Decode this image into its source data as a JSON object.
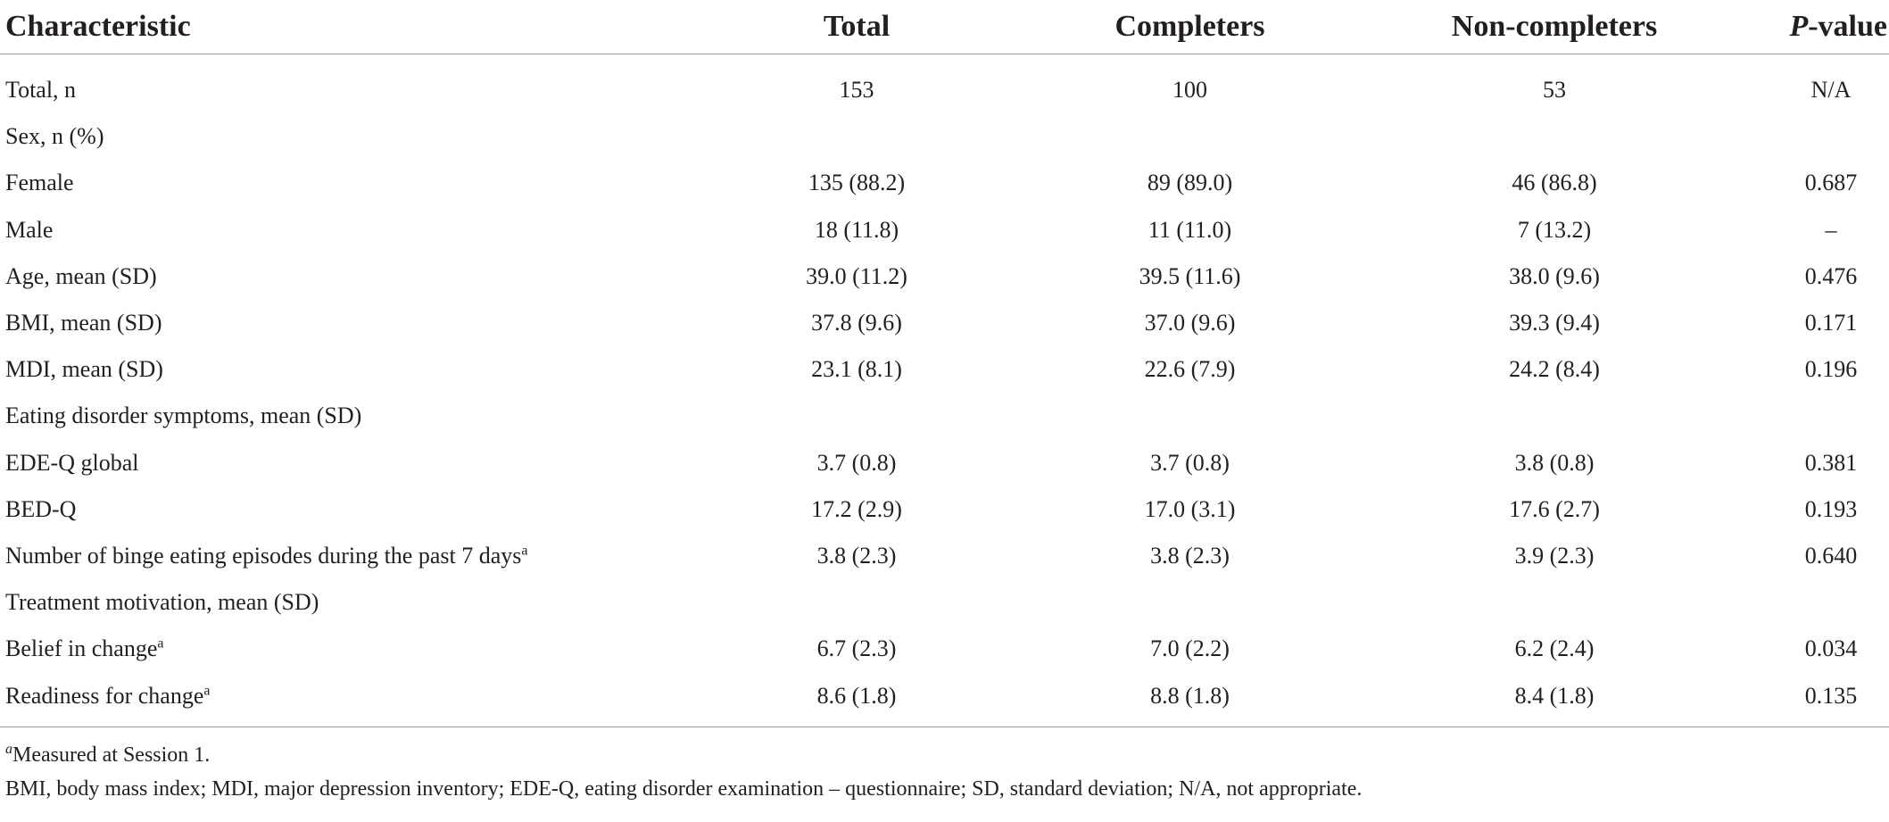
{
  "table": {
    "headers": [
      "Characteristic",
      "Total",
      "Completers",
      "Non-completers",
      "P-value"
    ],
    "header_pvalue_italic": "P",
    "header_pvalue_rest": "-value",
    "rows": [
      {
        "label": "Total, n",
        "sup": "",
        "total": "153",
        "completers": "100",
        "noncompleters": "53",
        "p": "N/A"
      },
      {
        "label": "Sex, n (%)",
        "sup": "",
        "total": "",
        "completers": "",
        "noncompleters": "",
        "p": ""
      },
      {
        "label": "Female",
        "sup": "",
        "total": "135 (88.2)",
        "completers": "89 (89.0)",
        "noncompleters": "46 (86.8)",
        "p": "0.687"
      },
      {
        "label": "Male",
        "sup": "",
        "total": "18 (11.8)",
        "completers": "11 (11.0)",
        "noncompleters": "7 (13.2)",
        "p": "–"
      },
      {
        "label": "Age, mean (SD)",
        "sup": "",
        "total": "39.0 (11.2)",
        "completers": "39.5 (11.6)",
        "noncompleters": "38.0 (9.6)",
        "p": "0.476"
      },
      {
        "label": "BMI, mean (SD)",
        "sup": "",
        "total": "37.8 (9.6)",
        "completers": "37.0 (9.6)",
        "noncompleters": "39.3 (9.4)",
        "p": "0.171"
      },
      {
        "label": "MDI, mean (SD)",
        "sup": "",
        "total": "23.1 (8.1)",
        "completers": "22.6 (7.9)",
        "noncompleters": "24.2 (8.4)",
        "p": "0.196"
      },
      {
        "label": "Eating disorder symptoms, mean (SD)",
        "sup": "",
        "total": "",
        "completers": "",
        "noncompleters": "",
        "p": ""
      },
      {
        "label": "EDE-Q global",
        "sup": "",
        "total": "3.7 (0.8)",
        "completers": "3.7 (0.8)",
        "noncompleters": "3.8 (0.8)",
        "p": "0.381"
      },
      {
        "label": "BED-Q",
        "sup": "",
        "total": "17.2 (2.9)",
        "completers": "17.0 (3.1)",
        "noncompleters": "17.6 (2.7)",
        "p": "0.193"
      },
      {
        "label": "Number of binge eating episodes during the past 7 days",
        "sup": "a",
        "total": "3.8 (2.3)",
        "completers": "3.8 (2.3)",
        "noncompleters": "3.9 (2.3)",
        "p": "0.640"
      },
      {
        "label": "Treatment motivation, mean (SD)",
        "sup": "",
        "total": "",
        "completers": "",
        "noncompleters": "",
        "p": ""
      },
      {
        "label": "Belief in change",
        "sup": "a",
        "total": "6.7 (2.3)",
        "completers": "7.0 (2.2)",
        "noncompleters": "6.2 (2.4)",
        "p": "0.034"
      },
      {
        "label": "Readiness for change",
        "sup": "a",
        "total": "8.6 (1.8)",
        "completers": "8.8 (1.8)",
        "noncompleters": "8.4 (1.8)",
        "p": "0.135"
      }
    ]
  },
  "footnotes": {
    "fn1_marker": "a",
    "fn1_text": "Measured at Session 1.",
    "fn2_text": "BMI, body mass index; MDI, major depression inventory; EDE-Q, eating disorder examination – questionnaire; SD, standard deviation; N/A, not appropriate."
  }
}
